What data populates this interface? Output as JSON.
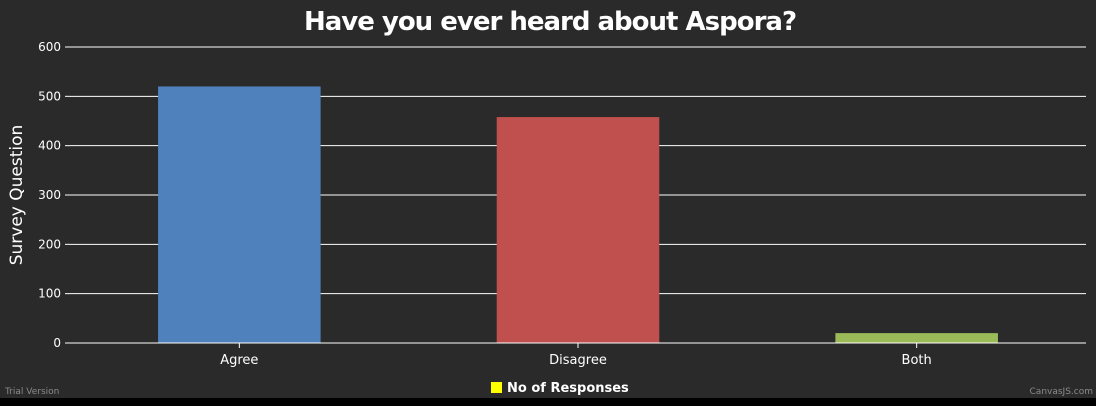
{
  "chart_data": {
    "type": "bar",
    "title": "Have you ever heard about Aspora?",
    "ylabel": "Survey Question",
    "xlabel": "",
    "categories": [
      "Agree",
      "Disagree",
      "Both"
    ],
    "series": [
      {
        "name": "No of Responses",
        "values": [
          520,
          458,
          20
        ],
        "colors": [
          "#4f81bc",
          "#c0504e",
          "#9bbb58"
        ]
      }
    ],
    "ylim": [
      0,
      600
    ],
    "yticks": [
      "0",
      "100",
      "200",
      "300",
      "400",
      "500",
      "600"
    ],
    "grid": true,
    "legend_position": "bottom-center",
    "legend_marker_color": "#ffff00"
  },
  "footer": {
    "left_text": "Trial Version",
    "right_text": "CanvasJS.com"
  }
}
